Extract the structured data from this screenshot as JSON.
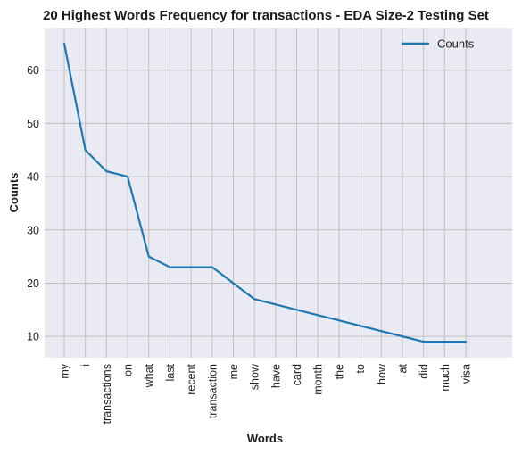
{
  "chart_data": {
    "type": "line",
    "title": "20 Highest Words Frequency for transactions - EDA Size-2 Testing Set",
    "xlabel": "Words",
    "ylabel": "Counts",
    "categories": [
      "my",
      "i",
      "transactions",
      "on",
      "what",
      "last",
      "recent",
      "transaction",
      "me",
      "show",
      "have",
      "card",
      "month",
      "the",
      "to",
      "how",
      "at",
      "did",
      "much",
      "visa"
    ],
    "series": [
      {
        "name": "Counts",
        "color": "#1f77b4",
        "values": [
          65,
          45,
          41,
          40,
          25,
          23,
          23,
          23,
          20,
          17,
          16,
          15,
          14,
          13,
          12,
          11,
          10,
          9,
          9,
          9
        ]
      }
    ],
    "yticks": [
      10,
      20,
      30,
      40,
      50,
      60
    ],
    "ylim": [
      6,
      68
    ],
    "grid": true,
    "legend_position": "top-right",
    "colors": {
      "plot_background": "#eaeaf2",
      "grid": "#c0c0c0",
      "line": "#1f77b4"
    }
  }
}
